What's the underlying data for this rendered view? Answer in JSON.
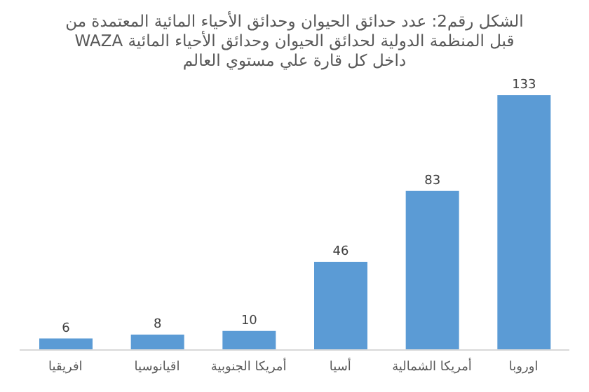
{
  "chart_data": {
    "type": "bar",
    "title": "الشكل رقم2: عدد حدائق الحيوان وحدائق الأحياء المائية المعتمدة من قبل المنظمة الدولية لحدائق الحيوان وحدائق الأحياء المائية WAZA داخل كل قارة علي مستوي العالم",
    "categories": [
      "افريقيا",
      "اقيانوسيا",
      "أمريكا الجنوبية",
      "أسيا",
      "أمريكا الشمالية",
      "اوروبا"
    ],
    "values": [
      6,
      8,
      10,
      46,
      83,
      133
    ],
    "color": "#5b9bd5",
    "data_labels": true,
    "tick_labels": "x"
  }
}
